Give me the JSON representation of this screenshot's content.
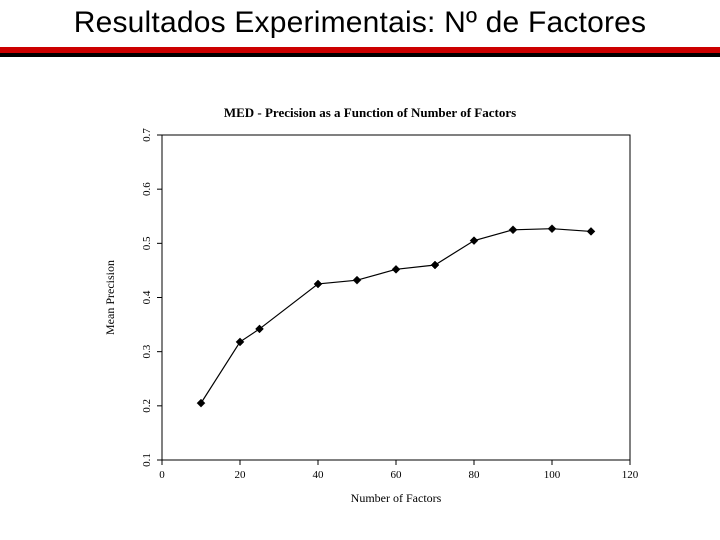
{
  "slide": {
    "title": "Resultados Experimentais: Nº de Factores"
  },
  "chart": {
    "type": "line",
    "title": "MED - Precision as a Function of Number of Factors",
    "xlabel": "Number of Factors",
    "ylabel": "Mean Precision",
    "xlim": [
      0,
      120
    ],
    "ylim": [
      0.1,
      0.7
    ],
    "xticks": [
      0,
      20,
      40,
      60,
      80,
      100,
      120
    ],
    "yticks": [
      0.1,
      0.2,
      0.3,
      0.4,
      0.5,
      0.6,
      0.7
    ],
    "series": {
      "x": [
        10,
        20,
        25,
        40,
        50,
        60,
        70,
        80,
        90,
        100,
        110
      ],
      "y": [
        0.205,
        0.318,
        0.342,
        0.425,
        0.432,
        0.452,
        0.46,
        0.505,
        0.525,
        0.527,
        0.522
      ]
    },
    "line_color": "#000000",
    "line_width": 1.2,
    "marker_style": "diamond",
    "marker_size": 4,
    "marker_color": "#000000",
    "background_color": "#ffffff",
    "border_color": "#000000",
    "tick_color": "#000000",
    "label_fontsize": 12,
    "tick_fontsize": 11,
    "title_fontsize": 13,
    "title_fontweight": "bold"
  },
  "colors": {
    "rule_red": "#cc0000",
    "rule_black": "#000000"
  }
}
